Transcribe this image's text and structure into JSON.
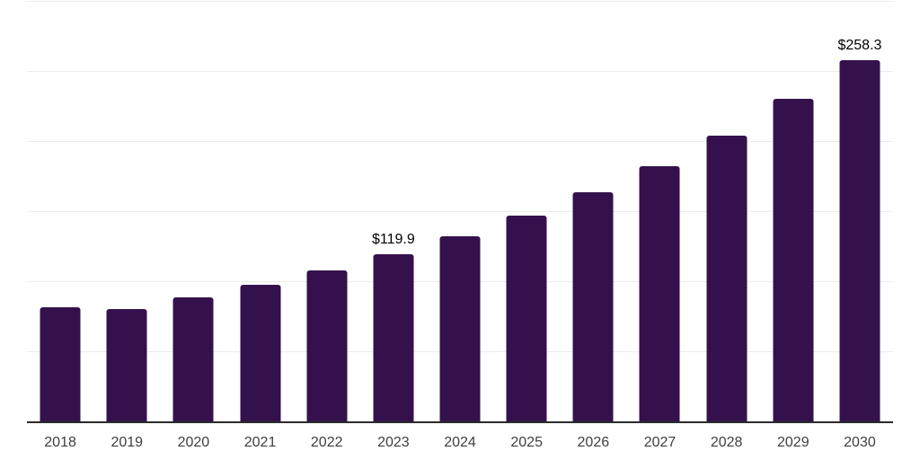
{
  "chart_data": {
    "type": "bar",
    "title": "",
    "xlabel": "",
    "ylabel": "",
    "categories": [
      "2018",
      "2019",
      "2020",
      "2021",
      "2022",
      "2023",
      "2024",
      "2025",
      "2026",
      "2027",
      "2028",
      "2029",
      "2030"
    ],
    "values": [
      81.9,
      80.6,
      89.1,
      97.9,
      108.3,
      119.9,
      132.9,
      147.4,
      164.1,
      182.7,
      204.5,
      230.8,
      258.3
    ],
    "annotated_points": [
      {
        "category": "2023",
        "label": "$119.9"
      },
      {
        "category": "2030",
        "label": "$258.3"
      }
    ],
    "ylim": [
      0,
      300
    ],
    "gridline_step": 50,
    "grid": true,
    "y_tick_labels_visible": false,
    "legend": "none",
    "colors": {
      "bar": "#34114d",
      "gridline": "#ececec",
      "axis": "#2b2b2b",
      "x_tick_label": "#3f3f3f",
      "value_label": "#000000",
      "background": "#ffffff"
    }
  }
}
